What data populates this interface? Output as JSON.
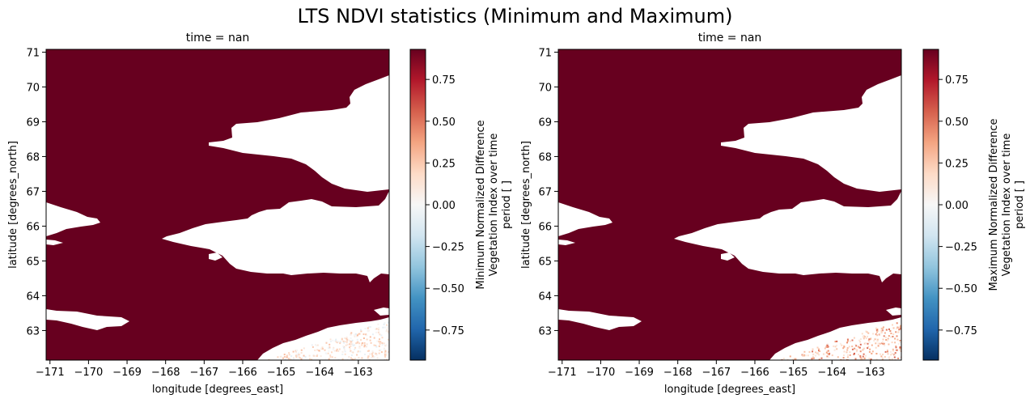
{
  "figure": {
    "suptitle": "LTS NDVI statistics (Minimum and Maximum)"
  },
  "chart_data": [
    {
      "type": "heatmap",
      "title": "time = nan",
      "xlabel": "longitude [degrees_east]",
      "ylabel": "latitude [degrees_north]",
      "xlim": [
        -171.1,
        -162.2
      ],
      "ylim": [
        62.15,
        71.08
      ],
      "xticks": [
        -171,
        -170,
        -169,
        -168,
        -167,
        -166,
        -165,
        -164,
        -163
      ],
      "xtick_labels": [
        "−171",
        "−170",
        "−169",
        "−168",
        "−167",
        "−166",
        "−165",
        "−164",
        "−163"
      ],
      "yticks": [
        63,
        64,
        65,
        66,
        67,
        68,
        69,
        70,
        71
      ],
      "ytick_labels": [
        "63",
        "64",
        "65",
        "66",
        "67",
        "68",
        "69",
        "70",
        "71"
      ],
      "colormap": "RdBu_r",
      "colorbar": {
        "label": [
          "Minimum Normalized Difference",
          "Vegetation Index over time",
          "period [ ]"
        ],
        "range": [
          -0.93,
          0.93
        ],
        "ticks": [
          -0.75,
          -0.5,
          -0.25,
          0.0,
          0.25,
          0.5,
          0.75
        ],
        "tick_labels": [
          "−0.75",
          "−0.50",
          "−0.25",
          "0.00",
          "0.25",
          "0.50",
          "0.75"
        ]
      },
      "ocean_value": 0.93,
      "land_value": "NaN (white)",
      "land_near_zero_region": "southeast corner, values mostly -0.1 to 0.3"
    },
    {
      "type": "heatmap",
      "title": "time = nan",
      "xlabel": "longitude [degrees_east]",
      "ylabel": "latitude [degrees_north]",
      "xlim": [
        -171.1,
        -162.2
      ],
      "ylim": [
        62.15,
        71.08
      ],
      "xticks": [
        -171,
        -170,
        -169,
        -168,
        -167,
        -166,
        -165,
        -164,
        -163
      ],
      "xtick_labels": [
        "−171",
        "−170",
        "−169",
        "−168",
        "−167",
        "−166",
        "−165",
        "−164",
        "−163"
      ],
      "yticks": [
        63,
        64,
        65,
        66,
        67,
        68,
        69,
        70,
        71
      ],
      "ytick_labels": [
        "63",
        "64",
        "65",
        "66",
        "67",
        "68",
        "69",
        "70",
        "71"
      ],
      "colormap": "RdBu_r",
      "colorbar": {
        "label": [
          "Maximum Normalized Difference",
          "Vegetation Index over time",
          "period [ ]"
        ],
        "range": [
          -0.93,
          0.93
        ],
        "ticks": [
          -0.75,
          -0.5,
          -0.25,
          0.0,
          0.25,
          0.5,
          0.75
        ],
        "tick_labels": [
          "−0.75",
          "−0.50",
          "−0.25",
          "0.00",
          "0.25",
          "0.50",
          "0.75"
        ]
      },
      "ocean_value": 0.93,
      "land_value": "NaN (white)",
      "land_near_zero_region": "southeast corner, values mostly 0.1 to 0.5"
    }
  ],
  "colors": {
    "ocean": "#67001f",
    "land": "#ffffff",
    "stops": [
      "#053061",
      "#2166ac",
      "#4393c3",
      "#92c5de",
      "#d1e5f0",
      "#f7f7f7",
      "#fddbc7",
      "#f4a582",
      "#d6604d",
      "#b2182b",
      "#67001f"
    ]
  }
}
